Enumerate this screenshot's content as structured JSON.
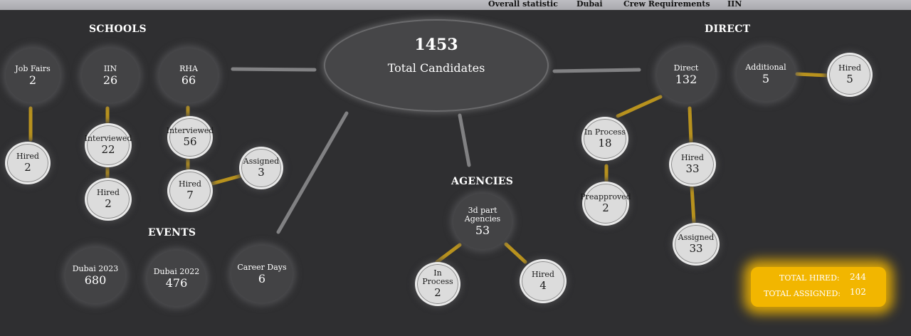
{
  "topbar": {
    "tabs": [
      "Overall statistic",
      "Dubai",
      "Crew Requirements",
      "IIN"
    ]
  },
  "headings": {
    "schools": "SCHOOLS",
    "direct": "DIRECT",
    "agencies": "AGENCIES",
    "events": "EVENTS"
  },
  "total": {
    "value": "1453",
    "label": "Total Candidates"
  },
  "nodes": {
    "job_fairs": {
      "label": "Job Fairs",
      "value": "2"
    },
    "job_fairs_hired": {
      "label": "Hired",
      "value": "2"
    },
    "iin": {
      "label": "IIN",
      "value": "26"
    },
    "iin_interviewed": {
      "label": "Interviewed",
      "value": "22"
    },
    "iin_hired": {
      "label": "Hired",
      "value": "2"
    },
    "rha": {
      "label": "RHA",
      "value": "66"
    },
    "rha_interviewed": {
      "label": "Interviewed",
      "value": "56"
    },
    "rha_hired": {
      "label": "Hired",
      "value": "7"
    },
    "rha_assigned": {
      "label": "Assigned",
      "value": "3"
    },
    "dubai_2023": {
      "label": "Dubai 2023",
      "value": "680"
    },
    "dubai_2022": {
      "label": "Dubai 2022",
      "value": "476"
    },
    "career_days": {
      "label": "Career Days",
      "value": "6"
    },
    "agencies": {
      "label1": "3d part",
      "label2": "Agencies",
      "value": "53"
    },
    "agencies_in_process": {
      "label": "In Process",
      "value": "2"
    },
    "agencies_hired": {
      "label": "Hired",
      "value": "4"
    },
    "direct": {
      "label": "Direct",
      "value": "132"
    },
    "direct_in_process": {
      "label": "In Process",
      "value": "18"
    },
    "direct_preapproved": {
      "label": "Preapproved",
      "value": "2"
    },
    "direct_hired": {
      "label": "Hired",
      "value": "33"
    },
    "direct_assigned": {
      "label": "Assigned",
      "value": "33"
    },
    "additional": {
      "label": "Additional",
      "value": "5"
    },
    "additional_hired": {
      "label": "Hired",
      "value": "5"
    }
  },
  "totals": {
    "hired_label": "TOTAL HIRED:",
    "hired_value": "244",
    "assigned_label": "TOTAL ASSIGNED:",
    "assigned_value": "102"
  },
  "colors": {
    "background": "#2f2f31",
    "connector_gold": "#b8921e",
    "connector_gray": "#8a8a8c",
    "totals_box": "#f2b600"
  }
}
